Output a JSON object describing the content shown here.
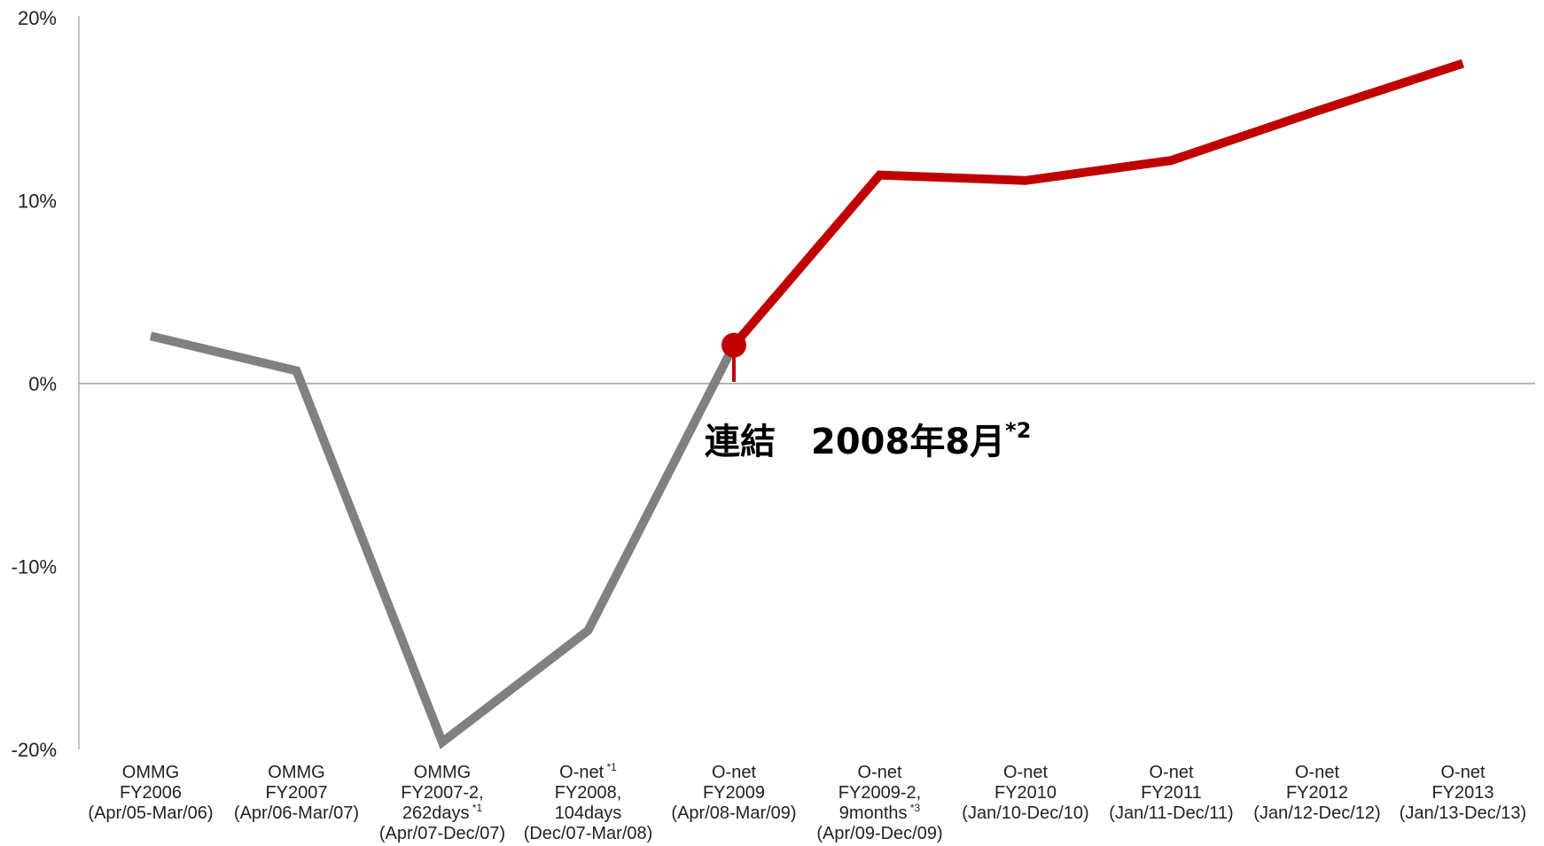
{
  "chart_data": {
    "type": "line",
    "categories": [
      {
        "lines": [
          "OMMG",
          "FY2006",
          "(Apr/05-Mar/06)"
        ]
      },
      {
        "lines": [
          "OMMG",
          "FY2007",
          "(Apr/06-Mar/07)"
        ]
      },
      {
        "lines": [
          "OMMG",
          "FY2007-2,",
          "262days"
        ],
        "sup": "*1",
        "extra": "(Apr/07-Dec/07)"
      },
      {
        "lines": [
          "O-net"
        ],
        "sup": "*1",
        "rest": [
          "FY2008,",
          "104days",
          "(Dec/07-Mar/08)"
        ]
      },
      {
        "lines": [
          "O-net",
          "FY2009",
          "(Apr/08-Mar/09)"
        ]
      },
      {
        "lines": [
          "O-net",
          "FY2009-2,",
          "9months"
        ],
        "sup": "*3",
        "extra": "(Apr/09-Dec/09)"
      },
      {
        "lines": [
          "O-net",
          "FY2010",
          "(Jan/10-Dec/10)"
        ]
      },
      {
        "lines": [
          "O-net",
          "FY2011",
          "(Jan/11-Dec/11)"
        ]
      },
      {
        "lines": [
          "O-net",
          "FY2012",
          "(Jan/12-Dec/12)"
        ]
      },
      {
        "lines": [
          "O-net",
          "FY2013",
          "(Jan/13-Dec/13)"
        ]
      }
    ],
    "series": [
      {
        "values": [
          2.6,
          0.7,
          -19.6,
          -13.5,
          2.1,
          null,
          null,
          null,
          null,
          null
        ],
        "color": "#808080"
      },
      {
        "values": [
          null,
          null,
          null,
          null,
          2.1,
          11.4,
          11.1,
          12.2,
          14.9,
          17.5
        ],
        "color": "#c00000"
      }
    ],
    "ylim": [
      -20,
      20
    ],
    "yticks": [
      {
        "value": 20,
        "label": "20%"
      },
      {
        "value": 10,
        "label": "10%"
      },
      {
        "value": 0,
        "label": "0%"
      },
      {
        "value": -10,
        "label": "-10%"
      },
      {
        "value": -20,
        "label": "-20%"
      }
    ],
    "marker": {
      "category_index": 4,
      "value": 2.1,
      "color": "#c00000"
    },
    "annotation": {
      "text": "連結　2008年8月",
      "sup": "*2"
    },
    "grid": false
  }
}
